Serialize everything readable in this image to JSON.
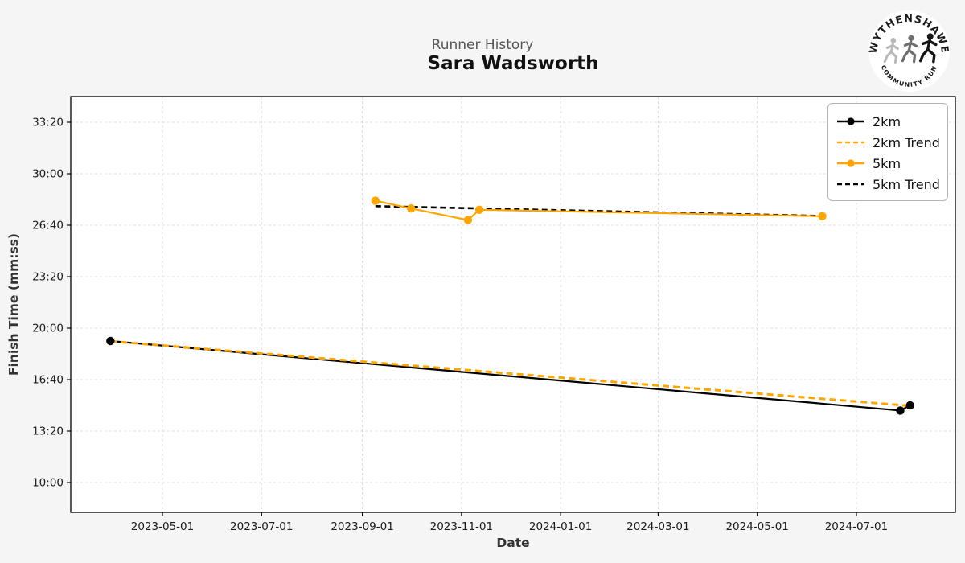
{
  "header": {
    "subtitle": "Runner History",
    "title": "Sara Wadsworth"
  },
  "logo": {
    "top_text": "WYTHENSHAWE",
    "bottom_text": "COMMUNITY RUN"
  },
  "chart_data": {
    "type": "line",
    "title": "Runner History — Sara Wadsworth",
    "xlabel": "Date",
    "ylabel": "Finish Time (mm:ss)",
    "grid": true,
    "legend_position": "upper right",
    "x_ticks": [
      "2023-05-01",
      "2023-07-01",
      "2023-09-01",
      "2023-11-01",
      "2024-01-01",
      "2024-03-01",
      "2024-05-01",
      "2024-07-01"
    ],
    "y_ticks": [
      "33:20",
      "30:00",
      "26:40",
      "23:20",
      "20:00",
      "16:40",
      "13:20",
      "10:00"
    ],
    "colors": {
      "series_black": "#000000",
      "series_orange": "#FFA500",
      "grid": "#dcdcdc",
      "plot_bg": "#ffffff",
      "figure_bg": "#f5f5f5"
    },
    "series": [
      {
        "name": "2km",
        "color": "#000000",
        "style": "solid",
        "marker": true,
        "points": [
          {
            "date": "2023-03-30",
            "time": "19:10"
          },
          {
            "date": "2024-07-28",
            "time": "14:40"
          },
          {
            "date": "2024-08-03",
            "time": "15:00"
          }
        ]
      },
      {
        "name": "2km Trend",
        "color": "#FFA500",
        "style": "dashed",
        "marker": false,
        "points": [
          {
            "date": "2023-03-30",
            "time": "19:09"
          },
          {
            "date": "2024-08-03",
            "time": "14:58"
          }
        ]
      },
      {
        "name": "5km Trend",
        "color": "#000000",
        "style": "dashed",
        "marker": false,
        "points": [
          {
            "date": "2023-09-09",
            "time": "27:54"
          },
          {
            "date": "2024-06-10",
            "time": "27:16"
          }
        ]
      },
      {
        "name": "5km",
        "color": "#FFA500",
        "style": "solid",
        "marker": true,
        "points": [
          {
            "date": "2023-09-09",
            "time": "28:15"
          },
          {
            "date": "2023-10-01",
            "time": "27:45"
          },
          {
            "date": "2023-11-05",
            "time": "27:00"
          },
          {
            "date": "2023-11-12",
            "time": "27:40"
          },
          {
            "date": "2024-06-10",
            "time": "27:15"
          }
        ]
      }
    ],
    "legend": [
      {
        "label": "2km",
        "color": "#000000",
        "dash": false,
        "marker": true
      },
      {
        "label": "2km Trend",
        "color": "#FFA500",
        "dash": true,
        "marker": false
      },
      {
        "label": "5km",
        "color": "#FFA500",
        "dash": false,
        "marker": true
      },
      {
        "label": "5km Trend",
        "color": "#000000",
        "dash": true,
        "marker": false
      }
    ]
  }
}
